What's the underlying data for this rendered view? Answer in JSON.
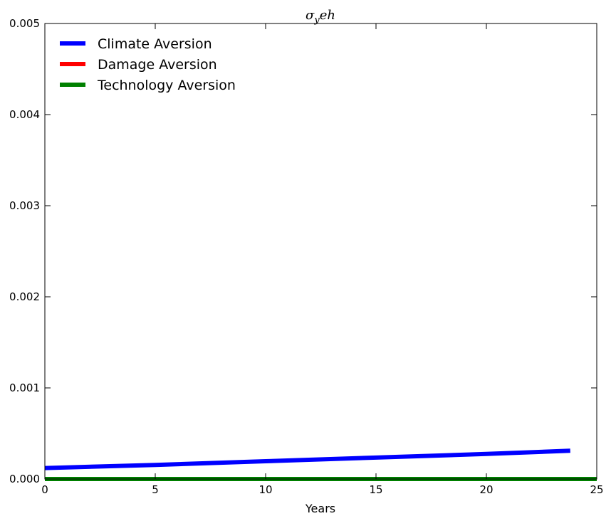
{
  "chart_data": {
    "type": "line",
    "title": "σyeh",
    "xlabel": "Years",
    "ylabel": "",
    "xlim": [
      0,
      25
    ],
    "ylim": [
      0,
      0.005
    ],
    "xticks": [
      "0",
      "5",
      "10",
      "15",
      "20",
      "25"
    ],
    "yticks": [
      "0.000",
      "0.001",
      "0.002",
      "0.003",
      "0.004",
      "0.005"
    ],
    "legend_position": "top-left",
    "series": [
      {
        "name": "Climate Aversion",
        "color": "#0000ff",
        "x": [
          0,
          5,
          10,
          15,
          20,
          23.8
        ],
        "y": [
          0.00012,
          0.000155,
          0.000195,
          0.000235,
          0.000275,
          0.00031
        ]
      },
      {
        "name": "Damage Aversion",
        "color": "#ff0000",
        "x": [
          0,
          25
        ],
        "y": [
          0,
          0
        ]
      },
      {
        "name": "Technology Aversion",
        "color": "#008000",
        "x": [
          0,
          25
        ],
        "y": [
          0,
          0
        ]
      }
    ]
  }
}
